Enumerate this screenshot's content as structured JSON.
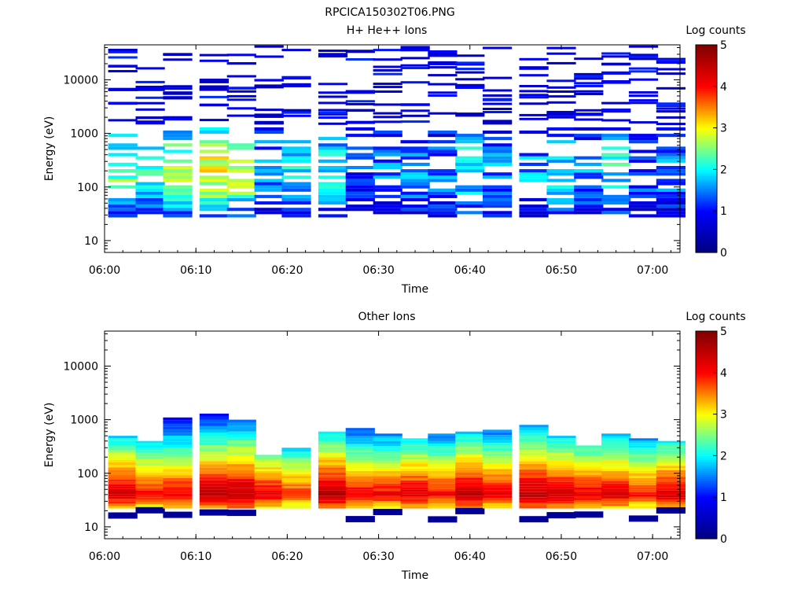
{
  "page_title": "RPCICA150302T06.PNG",
  "colors": {
    "jet_stops": [
      "#00007f",
      "#0000ff",
      "#00ffff",
      "#ffff00",
      "#ff0000",
      "#7f0000"
    ],
    "axis": "#000000",
    "background": "#ffffff"
  },
  "chart_data": [
    {
      "type": "heatmap",
      "title": "H+ He++ Ions",
      "xlabel": "Time",
      "ylabel": "Energy (eV)",
      "y_scale": "log",
      "ylim": [
        6,
        45000
      ],
      "xlim": [
        "06:00",
        "07:03"
      ],
      "x_ticks": [
        "06:00",
        "06:10",
        "06:20",
        "06:30",
        "06:40",
        "06:50",
        "07:00"
      ],
      "y_ticks": [
        "10",
        "100",
        "1000",
        "10000"
      ],
      "colorbar": {
        "label": "Log counts",
        "min": 0,
        "max": 5,
        "ticks": [
          "0",
          "1",
          "2",
          "3",
          "4",
          "5"
        ]
      },
      "time_bins": [
        "06:02",
        "06:05",
        "06:08",
        "06:12",
        "06:15",
        "06:18",
        "06:21",
        "06:25",
        "06:28",
        "06:31",
        "06:34",
        "06:37",
        "06:40",
        "06:43",
        "06:47",
        "06:50",
        "06:53",
        "06:56",
        "06:59",
        "07:02"
      ],
      "dense_band": {
        "energy_low_eV": 27,
        "energy_high_eV": 1300,
        "log_counts_by_bin": [
          2.4,
          2.2,
          2.5,
          2.9,
          2.7,
          1.6,
          1.8,
          2.0,
          1.2,
          1.4,
          1.6,
          1.5,
          2.0,
          1.5,
          1.6,
          1.9,
          1.5,
          2.0,
          1.3,
          1.5
        ]
      }
    },
    {
      "type": "heatmap",
      "title": "Other Ions",
      "xlabel": "Time",
      "ylabel": "Energy (eV)",
      "y_scale": "log",
      "ylim": [
        6,
        45000
      ],
      "xlim": [
        "06:00",
        "07:03"
      ],
      "x_ticks": [
        "06:00",
        "06:10",
        "06:20",
        "06:30",
        "06:40",
        "06:50",
        "07:00"
      ],
      "y_ticks": [
        "10",
        "100",
        "1000",
        "10000"
      ],
      "colorbar": {
        "label": "Log counts",
        "min": 0,
        "max": 5,
        "ticks": [
          "0",
          "1",
          "2",
          "3",
          "4",
          "5"
        ]
      },
      "time_bins": [
        "06:02",
        "06:05",
        "06:08",
        "06:12",
        "06:15",
        "06:18",
        "06:21",
        "06:25",
        "06:28",
        "06:31",
        "06:34",
        "06:37",
        "06:40",
        "06:43",
        "06:47",
        "06:50",
        "06:53",
        "06:56",
        "06:59",
        "07:02"
      ],
      "dense_band": {
        "energy_low_eV": 22,
        "upper_edge_eV_by_bin": [
          500,
          400,
          1100,
          1300,
          1000,
          220,
          300,
          600,
          700,
          550,
          450,
          550,
          600,
          650,
          800,
          500,
          330,
          550,
          450,
          400
        ],
        "peak_energy_eV": 40,
        "peak_log_counts_by_bin": [
          4.4,
          4.1,
          4.2,
          4.5,
          4.6,
          4.2,
          3.9,
          4.6,
          4.1,
          4.1,
          4.3,
          4.1,
          4.5,
          4.2,
          4.6,
          4.4,
          4.2,
          4.3,
          4.0,
          4.3
        ]
      }
    }
  ]
}
